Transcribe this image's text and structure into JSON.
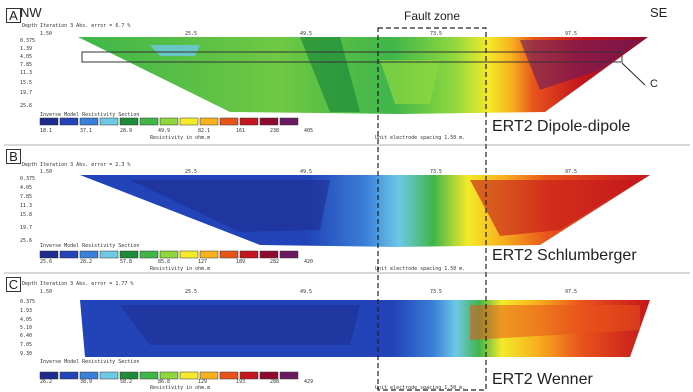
{
  "header": {
    "left_dir": "NW",
    "right_dir": "SE",
    "fault_label": "Fault zone",
    "callout": "C"
  },
  "panels": [
    {
      "letter": "A",
      "iteration": "Depth  Iteration 3 Abs. error = 6.7 %",
      "ticks": [
        "1.50",
        "25.5",
        "49.5",
        "73.5",
        "97.5"
      ],
      "depths": [
        "0.375",
        "1.39",
        "4.05",
        "7.85",
        "11.3",
        "15.5",
        "19.7",
        "25.6"
      ],
      "section_label": "Inverse Model Resistivity Section",
      "scale": [
        "18.1",
        "37.1",
        "28.9",
        "49.9",
        "82.1",
        "161",
        "238",
        "405"
      ],
      "unit": "Resistivity in ohm.m",
      "spacing": "Unit electrode spacing 1.50 m.",
      "title": "ERT2 Dipole-dipole"
    },
    {
      "letter": "B",
      "iteration": "Depth  Iteration 3 Abs. error = 2.3 %",
      "ticks": [
        "1.50",
        "25.5",
        "49.5",
        "73.5",
        "97.5"
      ],
      "depths": [
        "0.375",
        "4.05",
        "7.85",
        "11.3",
        "15.8",
        "19.7",
        "25.6"
      ],
      "section_label": "Inverse Model Resistivity Section",
      "scale": [
        "25.6",
        "28.2",
        "57.8",
        "85.8",
        "127",
        "189",
        "282",
        "420"
      ],
      "unit": "Resistivity in ohm.m",
      "spacing": "Unit electrode spacing 1.50 m.",
      "title": "ERT2 Schlumberger"
    },
    {
      "letter": "C",
      "iteration": "Depth  Iteration 3 Abs. error = 1.77 %",
      "ticks": [
        "1.50",
        "25.5",
        "49.5",
        "73.5",
        "97.5"
      ],
      "depths": [
        "0.375",
        "1.93",
        "4.05",
        "5.10",
        "6.40",
        "7.05",
        "9.30"
      ],
      "section_label": "Inverse Model Resistivity Section",
      "scale": [
        "26.2",
        "38.9",
        "58.2",
        "86.8",
        "129",
        "193",
        "288",
        "429"
      ],
      "unit": "Resistivity in ohm.m",
      "spacing": "Unit electrode spacing 1.50 m.",
      "title": "ERT2 Wenner"
    }
  ],
  "colors": {
    "scale": [
      "#1e2a8c",
      "#2244b8",
      "#3a7fd8",
      "#6ec8e6",
      "#1e8a3a",
      "#3fb54a",
      "#8ed83e",
      "#f4ea2a",
      "#f7b21e",
      "#e8531c",
      "#c4161c",
      "#8e0b2e",
      "#6a1a5e"
    ],
    "frame": "#333333"
  }
}
